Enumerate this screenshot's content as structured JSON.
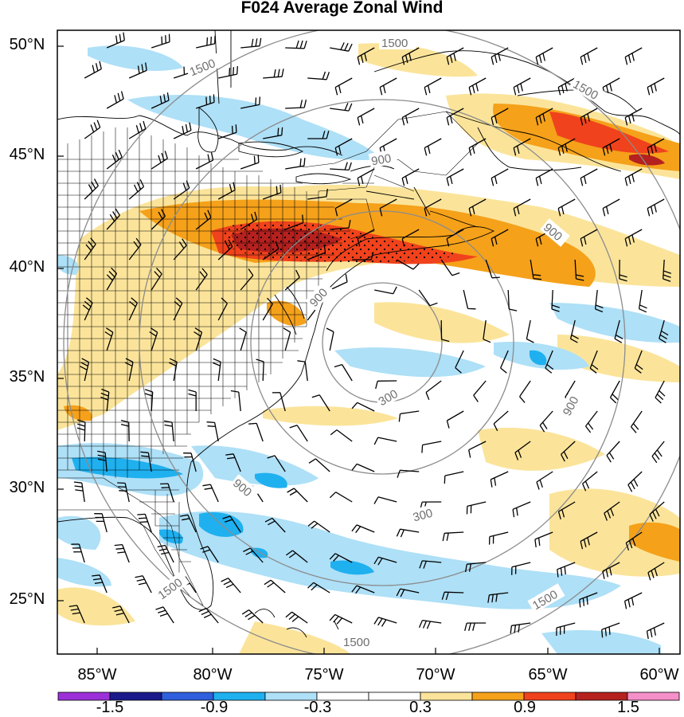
{
  "title": "F024 Average Zonal Wind",
  "lat_labels": [
    "50°N",
    "45°N",
    "40°N",
    "35°N",
    "30°N",
    "25°N"
  ],
  "lon_labels": [
    "85°W",
    "80°W",
    "75°W",
    "70°W",
    "65°W",
    "60°W"
  ],
  "contour_labels": [
    "1500",
    "1500",
    "1500",
    "900",
    "900",
    "900",
    "900",
    "900",
    "300",
    "300",
    "1500",
    "1500",
    "1500"
  ],
  "colorbar": {
    "colors": [
      "#9b30d9",
      "#1a1a8c",
      "#2f5fdc",
      "#1fb0ef",
      "#aee0f7",
      "#ffffff",
      "#ffffff",
      "#fbe49a",
      "#f5a11a",
      "#f0421c",
      "#b5211e",
      "#f58fc8"
    ],
    "labels": [
      "-1.5",
      "-0.9",
      "-0.3",
      "0.3",
      "0.9",
      "1.5"
    ]
  }
}
